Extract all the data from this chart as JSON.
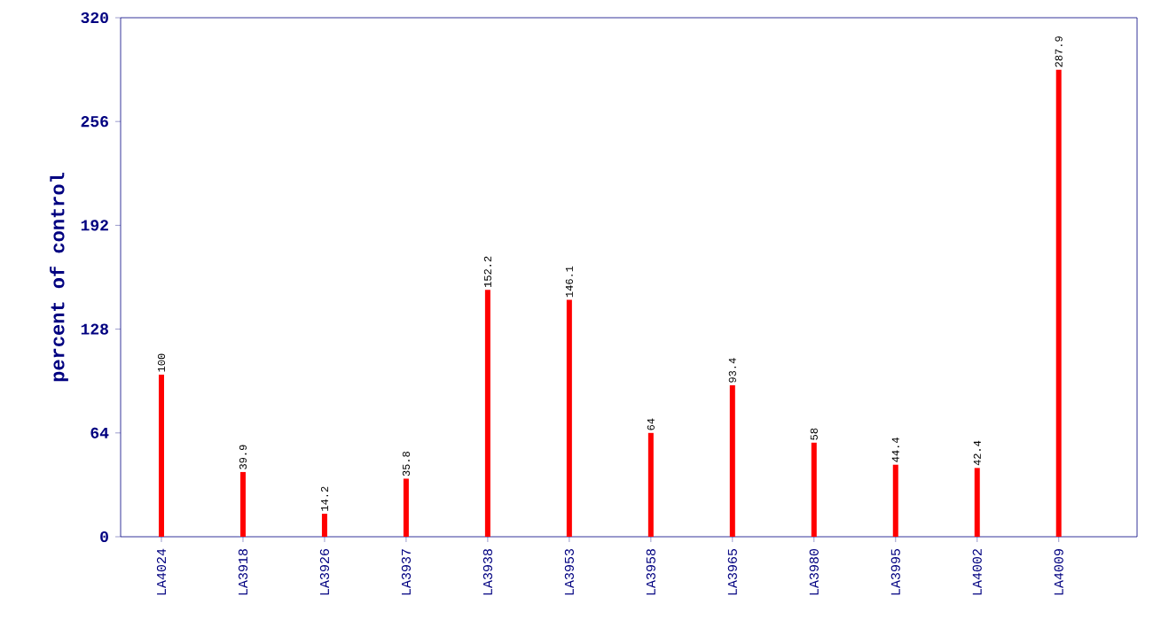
{
  "chart_data": {
    "type": "bar",
    "ylabel": "percent of control",
    "categories": [
      "LA4024",
      "LA3918",
      "LA3926",
      "LA3937",
      "LA3938",
      "LA3953",
      "LA3958",
      "LA3965",
      "LA3980",
      "LA3995",
      "LA4002",
      "LA4009"
    ],
    "values": [
      100,
      39.9,
      14.2,
      35.8,
      152.2,
      146.1,
      64,
      93.4,
      58,
      44.4,
      42.4,
      287.9
    ],
    "color": "#ff0000",
    "ylim": [
      0,
      320
    ],
    "yticks": [
      0,
      64,
      128,
      192,
      256,
      320
    ],
    "data_labels": true
  }
}
